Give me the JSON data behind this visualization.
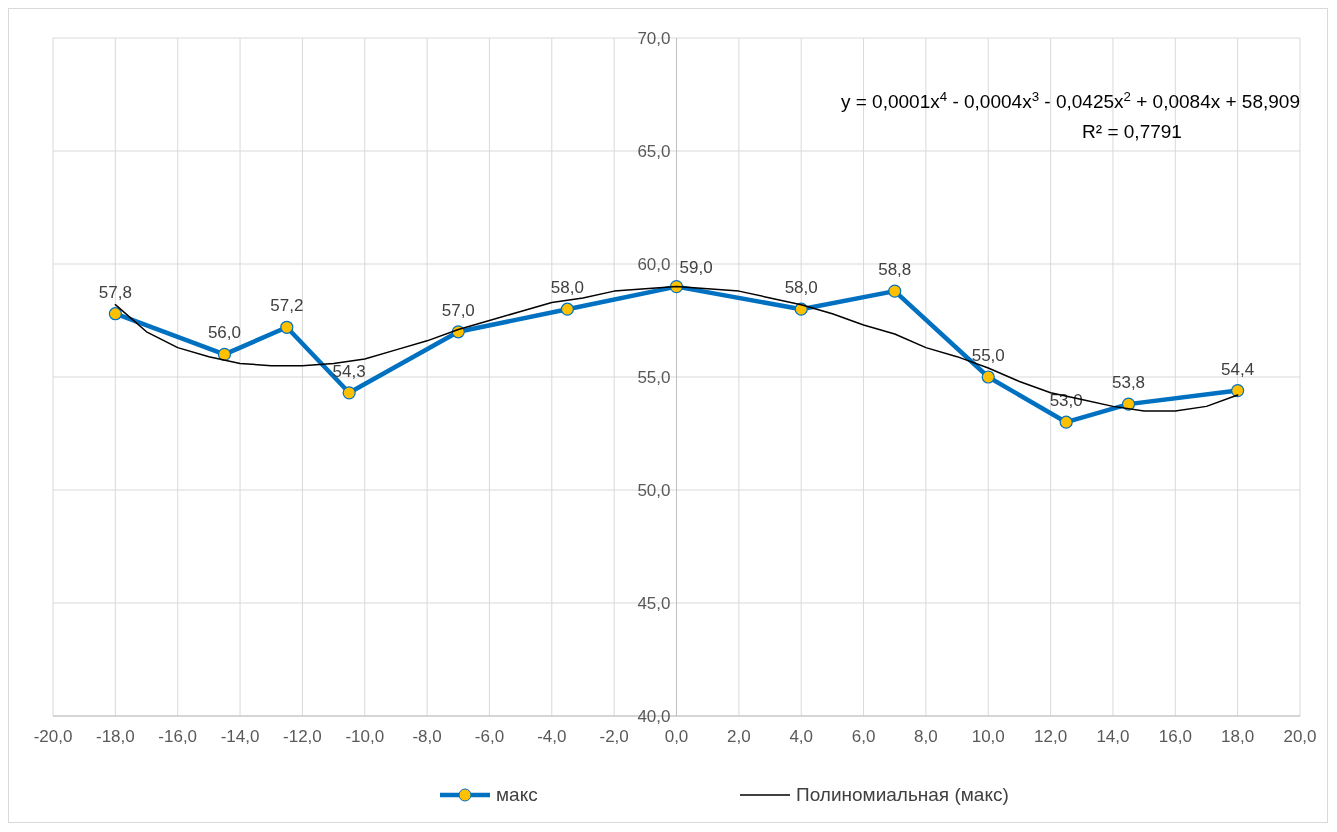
{
  "chart_data": {
    "type": "line",
    "x": [
      -18,
      -14.5,
      -12.5,
      -10.5,
      -7,
      -3.5,
      0,
      4,
      7,
      10,
      12.5,
      14.5,
      18
    ],
    "series": [
      {
        "name": "макс",
        "color": "#0070c0",
        "marker": "circle",
        "values": [
          57.8,
          56.0,
          57.2,
          54.3,
          57.0,
          58.0,
          59.0,
          58.0,
          58.8,
          55.0,
          53.0,
          53.8,
          54.4
        ],
        "value_labels": [
          "57,8",
          "56,0",
          "57,2",
          "54,3",
          "57,0",
          "58,0",
          "59,0",
          "58,0",
          "58,8",
          "55,0",
          "53,0",
          "53,8",
          "54,4"
        ]
      },
      {
        "name": "Полиномиальная (макс)",
        "color": "#000000",
        "marker": "none",
        "x": [
          -18,
          -17,
          -16,
          -15,
          -14,
          -13,
          -12,
          -11,
          -10,
          -9,
          -8,
          -7,
          -6,
          -5,
          -4,
          -3,
          -2,
          -1,
          0,
          1,
          2,
          3,
          4,
          5,
          6,
          7,
          8,
          9,
          10,
          11,
          12,
          13,
          14,
          15,
          16,
          17,
          18
        ],
        "values": [
          58.2,
          57.0,
          56.3,
          55.9,
          55.6,
          55.5,
          55.5,
          55.6,
          55.8,
          56.2,
          56.6,
          57.1,
          57.5,
          57.9,
          58.3,
          58.5,
          58.8,
          58.9,
          59.0,
          58.9,
          58.8,
          58.5,
          58.2,
          57.8,
          57.3,
          56.9,
          56.3,
          55.9,
          55.4,
          54.8,
          54.3,
          54.0,
          53.7,
          53.5,
          53.5,
          53.7,
          54.2
        ]
      }
    ],
    "xlim": [
      -20,
      20
    ],
    "xticks": [
      {
        "value": -20,
        "label": "-20,0"
      },
      {
        "value": -18,
        "label": "-18,0"
      },
      {
        "value": -16,
        "label": "-16,0"
      },
      {
        "value": -14,
        "label": "-14,0"
      },
      {
        "value": -12,
        "label": "-12,0"
      },
      {
        "value": -10,
        "label": "-10,0"
      },
      {
        "value": -8,
        "label": "-8,0"
      },
      {
        "value": -6,
        "label": "-6,0"
      },
      {
        "value": -4,
        "label": "-4,0"
      },
      {
        "value": -2,
        "label": "-2,0"
      },
      {
        "value": 0,
        "label": "0,0"
      },
      {
        "value": 2,
        "label": "2,0"
      },
      {
        "value": 4,
        "label": "4,0"
      },
      {
        "value": 6,
        "label": "6,0"
      },
      {
        "value": 8,
        "label": "8,0"
      },
      {
        "value": 10,
        "label": "10,0"
      },
      {
        "value": 12,
        "label": "12,0"
      },
      {
        "value": 14,
        "label": "14,0"
      },
      {
        "value": 16,
        "label": "16,0"
      },
      {
        "value": 18,
        "label": "18,0"
      },
      {
        "value": 20,
        "label": "20,0"
      }
    ],
    "ylim": [
      40,
      70
    ],
    "yticks": [
      {
        "value": 40,
        "label": "40,0"
      },
      {
        "value": 45,
        "label": "45,0"
      },
      {
        "value": 50,
        "label": "50,0"
      },
      {
        "value": 55,
        "label": "55,0"
      },
      {
        "value": 60,
        "label": "60,0"
      },
      {
        "value": 65,
        "label": "65,0"
      },
      {
        "value": 70,
        "label": "70,0"
      }
    ],
    "grid": true,
    "legend": "bottom",
    "annotations": [
      "y = 0,0001x$^{4}$ - 0,0004x$^{3}$ - 0,0425x$^{2}$ + 0,0084x + 58,909",
      "R² = 0,7791"
    ]
  }
}
